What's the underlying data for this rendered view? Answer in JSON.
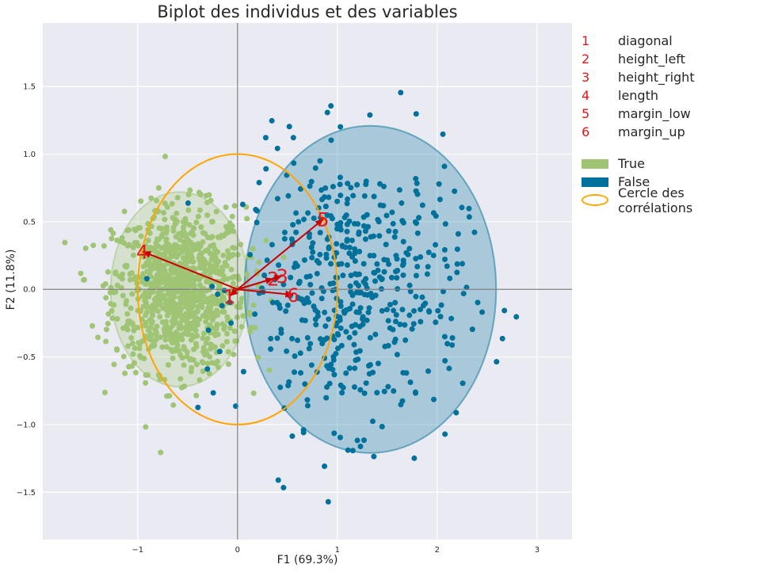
{
  "chart_data": {
    "type": "scatter",
    "title": "Biplot des individus et des variables",
    "xlabel": "F1 (69.3%)",
    "ylabel": "F2 (11.8%)",
    "xlim": [
      -1.95,
      3.35
    ],
    "ylim": [
      -1.85,
      1.97
    ],
    "x_ticks": [
      -1,
      0,
      1,
      2,
      3
    ],
    "y_ticks": [
      -1.5,
      -1.0,
      -0.5,
      0.0,
      0.5,
      1.0,
      1.5
    ],
    "grid": true,
    "legend_position": "outside-right",
    "groups": [
      {
        "name": "True",
        "color": "#9ec474",
        "center": [
          -0.58,
          0.0
        ],
        "spread": [
          0.33,
          0.3
        ],
        "count": 1000,
        "ellipse": {
          "center": [
            -0.58,
            0.0
          ],
          "radii": [
            0.69,
            0.72
          ]
        }
      },
      {
        "name": "False",
        "color": "#00719a",
        "center": [
          1.16,
          0.0
        ],
        "spread": [
          0.55,
          0.5
        ],
        "count": 500,
        "ellipse": {
          "center": [
            1.33,
            0.0
          ],
          "radii": [
            1.26,
            1.21
          ]
        }
      }
    ],
    "correlation_circle": {
      "name": "Cercle des corrélations",
      "color": "#ffa500",
      "center": [
        0,
        0
      ],
      "radius": 1.0
    },
    "variables": [
      {
        "num": "1",
        "name": "diagonal",
        "x": -0.08,
        "y": -0.05
      },
      {
        "num": "2",
        "name": "height_left",
        "x": 0.36,
        "y": 0.08
      },
      {
        "num": "3",
        "name": "height_right",
        "x": 0.45,
        "y": 0.1
      },
      {
        "num": "4",
        "name": "length",
        "x": -0.95,
        "y": 0.28
      },
      {
        "num": "5",
        "name": "margin_low",
        "x": 0.86,
        "y": 0.52
      },
      {
        "num": "6",
        "name": "margin_up",
        "x": 0.56,
        "y": -0.04
      }
    ]
  },
  "legend": {
    "groups": [
      {
        "label": "True",
        "color": "#9ec474"
      },
      {
        "label": "False",
        "color": "#00719a"
      }
    ],
    "circle_label": "Cercle des corrélations"
  }
}
